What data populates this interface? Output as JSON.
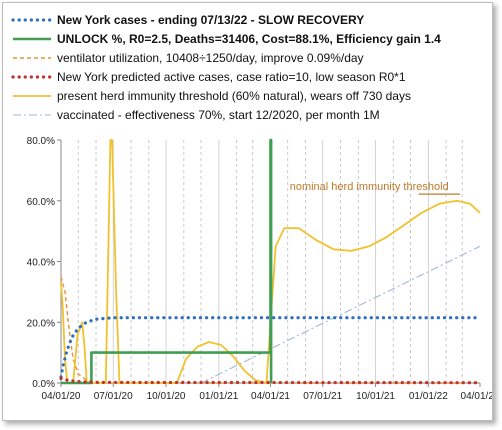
{
  "chart_data": {
    "type": "line",
    "x_range": [
      "2020-04-01",
      "2022-04-01"
    ],
    "ylim": [
      0,
      80
    ],
    "y_ticks": [
      "0.0%",
      "20.0%",
      "40.0%",
      "60.0%",
      "80.0%"
    ],
    "x_ticks": [
      "04/01/20",
      "07/01/20",
      "10/01/20",
      "01/01/21",
      "04/01/21",
      "07/01/21",
      "10/01/21",
      "01/01/22",
      "04/01/22"
    ],
    "annotation": "nominal herd immunity threshold",
    "grid": "vertical dashed lines at dates",
    "series": [
      {
        "name": "New York cases - ending 07/13/22 - SLOW RECOVERY",
        "color": "#2e6fbf",
        "style": "dotted-thick",
        "points": [
          [
            "2020-04-01",
            2
          ],
          [
            "2020-04-05",
            6
          ],
          [
            "2020-04-12",
            11
          ],
          [
            "2020-04-20",
            15
          ],
          [
            "2020-05-01",
            18
          ],
          [
            "2020-05-15",
            20
          ],
          [
            "2020-06-01",
            21
          ],
          [
            "2020-07-01",
            21.5
          ],
          [
            "2020-10-01",
            21.5
          ],
          [
            "2021-01-01",
            21.5
          ],
          [
            "2021-04-01",
            21.5
          ],
          [
            "2021-07-01",
            21.5
          ],
          [
            "2021-10-01",
            21.5
          ],
          [
            "2022-01-01",
            21.5
          ],
          [
            "2022-04-01",
            21.5
          ]
        ]
      },
      {
        "name": "UNLOCK %, R0=2.5,  Deaths=31406, Cost=88.1%, Efficiency gain 1.4",
        "color": "#3f9e54",
        "style": "solid-thick",
        "points": [
          [
            "2020-04-01",
            0
          ],
          [
            "2020-05-24",
            0
          ],
          [
            "2020-05-24",
            10
          ],
          [
            "2021-04-01",
            10
          ],
          [
            "2021-04-01",
            80
          ],
          [
            "2021-04-02",
            80
          ],
          [
            "2021-04-02",
            0
          ]
        ]
      },
      {
        "name": "ventilator utilization, 10408÷1250/day, improve 0.09%/day",
        "color": "#e9923a",
        "style": "dashed",
        "points": [
          [
            "2020-04-01",
            35
          ],
          [
            "2020-04-08",
            30
          ],
          [
            "2020-04-15",
            18
          ],
          [
            "2020-04-22",
            8
          ],
          [
            "2020-05-01",
            3
          ],
          [
            "2020-05-15",
            1
          ],
          [
            "2020-06-01",
            0
          ],
          [
            "2022-04-01",
            0
          ]
        ]
      },
      {
        "name": "New York predicted active cases, case ratio=10, low season R0*1",
        "color": "#c0322c",
        "style": "dotted-thick",
        "points": [
          [
            "2020-04-01",
            1.5
          ],
          [
            "2020-04-15",
            0.8
          ],
          [
            "2020-05-01",
            0.5
          ],
          [
            "2020-06-01",
            0.2
          ],
          [
            "2022-04-01",
            0.1
          ]
        ]
      },
      {
        "name": "present herd immunity threshold (60% natural), wears off 730 days",
        "color": "#f2c12e",
        "style": "solid",
        "points": [
          [
            "2020-04-01",
            33
          ],
          [
            "2020-04-04",
            25
          ],
          [
            "2020-04-08",
            8
          ],
          [
            "2020-04-12",
            0
          ],
          [
            "2020-04-22",
            0
          ],
          [
            "2020-04-30",
            16
          ],
          [
            "2020-05-08",
            20
          ],
          [
            "2020-05-12",
            12
          ],
          [
            "2020-05-16",
            0
          ],
          [
            "2020-06-18",
            0
          ],
          [
            "2020-06-26",
            80
          ],
          [
            "2020-06-29",
            80
          ],
          [
            "2020-07-06",
            30
          ],
          [
            "2020-07-12",
            0
          ],
          [
            "2020-10-20",
            0
          ],
          [
            "2020-11-05",
            8
          ],
          [
            "2020-11-25",
            12
          ],
          [
            "2020-12-15",
            13.5
          ],
          [
            "2021-01-05",
            12.5
          ],
          [
            "2021-01-25",
            9
          ],
          [
            "2021-02-15",
            4
          ],
          [
            "2021-03-05",
            1
          ],
          [
            "2021-03-25",
            0
          ],
          [
            "2021-04-01",
            20
          ],
          [
            "2021-04-10",
            45
          ],
          [
            "2021-04-25",
            51
          ],
          [
            "2021-05-20",
            51
          ],
          [
            "2021-06-20",
            47
          ],
          [
            "2021-07-20",
            44
          ],
          [
            "2021-08-20",
            43.5
          ],
          [
            "2021-09-20",
            45
          ],
          [
            "2021-10-20",
            48
          ],
          [
            "2021-11-20",
            52
          ],
          [
            "2021-12-20",
            56
          ],
          [
            "2022-01-20",
            59
          ],
          [
            "2022-02-20",
            60
          ],
          [
            "2022-03-15",
            59
          ],
          [
            "2022-04-01",
            56
          ]
        ]
      },
      {
        "name": "vaccinated - effectiveness 70%, start 12/2020, per month 1M",
        "color": "#9fb9d6",
        "style": "dashdot",
        "points": [
          [
            "2020-12-01",
            0
          ],
          [
            "2022-04-01",
            45
          ]
        ]
      }
    ]
  }
}
